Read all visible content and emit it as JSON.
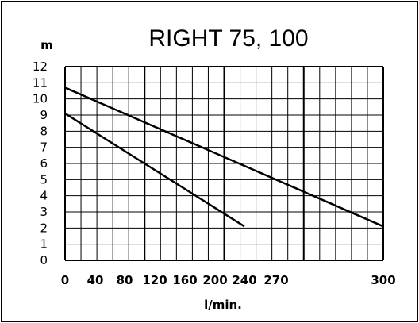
{
  "chart_data": {
    "type": "line",
    "title": "RIGHT 75, 100",
    "ylabel": "m",
    "xlabel": "l/min.",
    "x_tick_labels": [
      "0",
      "40",
      "80",
      "120",
      "160",
      "200",
      "240",
      "270",
      "300"
    ],
    "y_tick_labels": [
      "0",
      "1",
      "2",
      "3",
      "4",
      "5",
      "6",
      "7",
      "8",
      "9",
      "10",
      "11",
      "12"
    ],
    "ylim": [
      0,
      12
    ],
    "grid": true,
    "series": [
      {
        "points": [
          [
            0,
            10.7
          ],
          [
            300,
            2.1
          ]
        ]
      },
      {
        "points": [
          [
            0,
            9.1
          ],
          [
            240,
            2.1
          ]
        ]
      }
    ]
  }
}
